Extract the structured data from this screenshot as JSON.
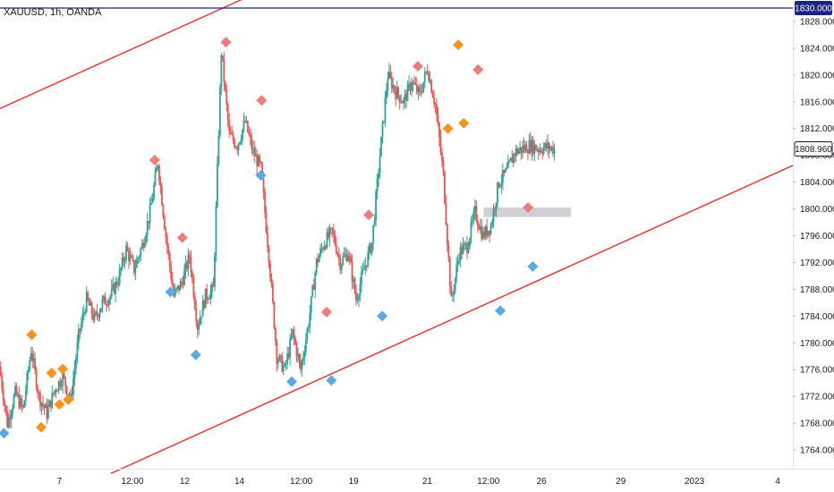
{
  "symbol_label": "XAUUSD, 1h, OANDA",
  "colors": {
    "up": "#26a69a",
    "down": "#ef5350",
    "trendline": "#e53935",
    "hline": "#1a237e",
    "zone": "#c7c7cc",
    "marker_red": "#ef7b7b",
    "marker_orange": "#f7931a",
    "marker_blue": "#5aa9e6",
    "axis_text": "#131722",
    "price_tag_bg": "#ffffff",
    "price_tag_border": "#131722"
  },
  "chart_data": {
    "type": "line",
    "title": "XAUUSD, 1h, OANDA",
    "xlabel": "",
    "ylabel": "",
    "x_axis_ticks": [
      "7",
      "12:00",
      "12",
      "14",
      "12:00",
      "19",
      "21",
      "12:00",
      "26",
      "29",
      "2023",
      "4"
    ],
    "y_axis_ticks": [
      1764,
      1768,
      1772,
      1776,
      1780,
      1784,
      1788,
      1792,
      1796,
      1800,
      1804,
      1808,
      1812,
      1816,
      1820,
      1824,
      1828
    ],
    "y_axis_tick_labels": [
      "1764.000",
      "1768.000",
      "1772.000",
      "1776.000",
      "1780.000",
      "1784.000",
      "1788.000",
      "1792.000",
      "1796.000",
      "1800.000",
      "1804.000",
      "1808.000",
      "1812.000",
      "1816.000",
      "1820.000",
      "1824.000",
      "1828.000"
    ],
    "ylim": [
      1761.2,
      1831.2
    ],
    "xlim": [
      0,
      100
    ],
    "grid": false,
    "series": [
      {
        "x": [
          0,
          1,
          2,
          3,
          4,
          5,
          6,
          7,
          8,
          9,
          10,
          11,
          12,
          13,
          14,
          15,
          16,
          17,
          18,
          19,
          20,
          21,
          22,
          23,
          24,
          25,
          26,
          27,
          28,
          29,
          30,
          31,
          32,
          33,
          34,
          35,
          36,
          37,
          38,
          39,
          40,
          41,
          42,
          43,
          44,
          45,
          46,
          47,
          48,
          49,
          50,
          51,
          52,
          53,
          54,
          55,
          56,
          57,
          58,
          59,
          60,
          61,
          62,
          63,
          64,
          65,
          66,
          67,
          68,
          69,
          70
        ],
        "y": [
          1776.5,
          1768.0,
          1772.5,
          1770.0,
          1779.0,
          1772.0,
          1769.5,
          1773.0,
          1775.0,
          1771.5,
          1781.0,
          1786.5,
          1783.5,
          1786.0,
          1787.0,
          1789.5,
          1794.0,
          1791.0,
          1794.5,
          1799.5,
          1807.0,
          1796.0,
          1787.0,
          1789.0,
          1793.0,
          1782.5,
          1787.0,
          1788.0,
          1823.5,
          1811.0,
          1809.5,
          1813.0,
          1808.5,
          1806.0,
          1793.0,
          1778.0,
          1776.0,
          1781.5,
          1776.0,
          1783.0,
          1792.0,
          1795.0,
          1796.5,
          1792.0,
          1793.5,
          1786.5,
          1791.0,
          1795.0,
          1808.0,
          1820.0,
          1817.5,
          1816.0,
          1819.0,
          1817.0,
          1821.0,
          1815.5,
          1805.0,
          1786.0,
          1793.5,
          1794.5,
          1799.5,
          1796.0,
          1797.5,
          1804.0,
          1805.5,
          1808.5,
          1809.0,
          1809.5,
          1809.0,
          1809.2,
          1808.96
        ]
      }
    ],
    "horizontal_line": {
      "price": 1830.0,
      "label": "1830.000"
    },
    "current_price": {
      "price": 1808.96,
      "label": "1808.960"
    },
    "zone": {
      "x_start": 61,
      "x_end": 72,
      "y_low": 1798.8,
      "y_high": 1800.2
    },
    "trendlines": [
      {
        "name": "channel-upper",
        "x1": 0,
        "y1": 1815.0,
        "x2": 45,
        "y2": 1839.0
      },
      {
        "name": "channel-lower",
        "x1": 14,
        "y1": 1760.5,
        "x2": 100,
        "y2": 1806.5
      }
    ],
    "markers": [
      {
        "x": 0.5,
        "y": 1766.5,
        "kind": "blue",
        "pos": "below"
      },
      {
        "x": 4,
        "y": 1781.2,
        "kind": "orange",
        "pos": "above"
      },
      {
        "x": 5.2,
        "y": 1767.4,
        "kind": "orange",
        "pos": "below"
      },
      {
        "x": 6.5,
        "y": 1775.5,
        "kind": "orange",
        "pos": "above"
      },
      {
        "x": 7.5,
        "y": 1770.8,
        "kind": "orange",
        "pos": "below"
      },
      {
        "x": 7.9,
        "y": 1776.1,
        "kind": "orange",
        "pos": "above"
      },
      {
        "x": 8.6,
        "y": 1771.5,
        "kind": "orange",
        "pos": "below"
      },
      {
        "x": 19.5,
        "y": 1807.3,
        "kind": "red",
        "pos": "above"
      },
      {
        "x": 21.5,
        "y": 1787.6,
        "kind": "blue",
        "pos": "below"
      },
      {
        "x": 23.0,
        "y": 1795.7,
        "kind": "red",
        "pos": "above"
      },
      {
        "x": 24.7,
        "y": 1778.2,
        "kind": "blue",
        "pos": "below"
      },
      {
        "x": 28.5,
        "y": 1824.9,
        "kind": "red",
        "pos": "above"
      },
      {
        "x": 33.0,
        "y": 1816.2,
        "kind": "red",
        "pos": "above"
      },
      {
        "x": 32.9,
        "y": 1805.0,
        "kind": "blue",
        "pos": "below"
      },
      {
        "x": 36.8,
        "y": 1774.2,
        "kind": "blue",
        "pos": "below"
      },
      {
        "x": 41.2,
        "y": 1784.6,
        "kind": "red",
        "pos": "above"
      },
      {
        "x": 41.8,
        "y": 1774.4,
        "kind": "blue",
        "pos": "below"
      },
      {
        "x": 46.5,
        "y": 1799.1,
        "kind": "red",
        "pos": "above"
      },
      {
        "x": 48.2,
        "y": 1784.0,
        "kind": "blue",
        "pos": "below"
      },
      {
        "x": 52.7,
        "y": 1821.3,
        "kind": "red",
        "pos": "above"
      },
      {
        "x": 56.5,
        "y": 1812.0,
        "kind": "orange",
        "pos": "below"
      },
      {
        "x": 57.8,
        "y": 1824.5,
        "kind": "orange",
        "pos": "above"
      },
      {
        "x": 58.5,
        "y": 1812.8,
        "kind": "orange",
        "pos": "below"
      },
      {
        "x": 60.3,
        "y": 1820.8,
        "kind": "red",
        "pos": "above"
      },
      {
        "x": 63.1,
        "y": 1784.8,
        "kind": "blue",
        "pos": "below"
      },
      {
        "x": 66.6,
        "y": 1800.2,
        "kind": "red",
        "pos": "above"
      },
      {
        "x": 67.2,
        "y": 1791.4,
        "kind": "blue",
        "pos": "below"
      }
    ]
  }
}
